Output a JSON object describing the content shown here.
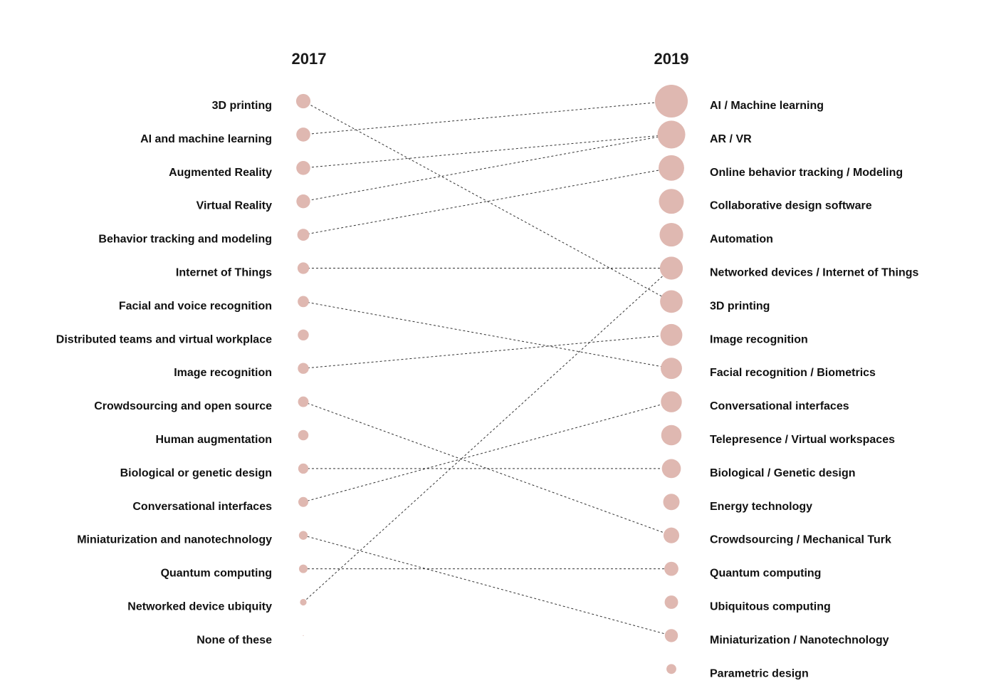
{
  "chart_data": {
    "type": "slope",
    "columns": [
      "2017",
      "2019"
    ],
    "dot_color": "#dfb8b1",
    "left_items": [
      {
        "label": "3D printing",
        "size": 0.72
      },
      {
        "label": "AI and machine learning",
        "size": 0.7
      },
      {
        "label": "Augmented Reality",
        "size": 0.7
      },
      {
        "label": "Virtual Reality",
        "size": 0.69
      },
      {
        "label": "Behavior tracking and modeling",
        "size": 0.6
      },
      {
        "label": "Internet of Things",
        "size": 0.58
      },
      {
        "label": "Facial and voice recognition",
        "size": 0.56
      },
      {
        "label": "Distributed teams and virtual workplace",
        "size": 0.55
      },
      {
        "label": "Image recognition",
        "size": 0.55
      },
      {
        "label": "Crowdsourcing and open source",
        "size": 0.53
      },
      {
        "label": "Human augmentation",
        "size": 0.52
      },
      {
        "label": "Biological or genetic design",
        "size": 0.51
      },
      {
        "label": "Conversational interfaces",
        "size": 0.5
      },
      {
        "label": "Miniaturization and nanotechnology",
        "size": 0.44
      },
      {
        "label": "Quantum computing",
        "size": 0.43
      },
      {
        "label": "Networked device ubiquity",
        "size": 0.33
      },
      {
        "label": "None of these",
        "size": 0.0
      }
    ],
    "right_items": [
      {
        "label": "AI / Machine learning",
        "size": 1.0
      },
      {
        "label": "AR / VR",
        "size": 0.85
      },
      {
        "label": "Online behavior tracking / Modeling",
        "size": 0.78
      },
      {
        "label": "Collaborative design software",
        "size": 0.76
      },
      {
        "label": "Automation",
        "size": 0.72
      },
      {
        "label": "Networked devices / Internet of Things",
        "size": 0.7
      },
      {
        "label": "3D printing",
        "size": 0.69
      },
      {
        "label": "Image recognition",
        "size": 0.67
      },
      {
        "label": "Facial recognition / Biometrics",
        "size": 0.65
      },
      {
        "label": "Conversational interfaces",
        "size": 0.64
      },
      {
        "label": "Telepresence / Virtual workspaces",
        "size": 0.62
      },
      {
        "label": "Biological / Genetic design",
        "size": 0.58
      },
      {
        "label": "Energy technology",
        "size": 0.5
      },
      {
        "label": "Crowdsourcing / Mechanical Turk",
        "size": 0.48
      },
      {
        "label": "Quantum computing",
        "size": 0.43
      },
      {
        "label": "Ubiquitous computing",
        "size": 0.41
      },
      {
        "label": "Miniaturization / Nanotechnology",
        "size": 0.4
      },
      {
        "label": "Parametric design",
        "size": 0.3
      }
    ],
    "links": [
      [
        0,
        6
      ],
      [
        1,
        0
      ],
      [
        2,
        1
      ],
      [
        3,
        1
      ],
      [
        4,
        2
      ],
      [
        5,
        5
      ],
      [
        6,
        8
      ],
      [
        8,
        7
      ],
      [
        9,
        13
      ],
      [
        11,
        11
      ],
      [
        12,
        9
      ],
      [
        13,
        16
      ],
      [
        14,
        14
      ],
      [
        15,
        5
      ]
    ]
  }
}
